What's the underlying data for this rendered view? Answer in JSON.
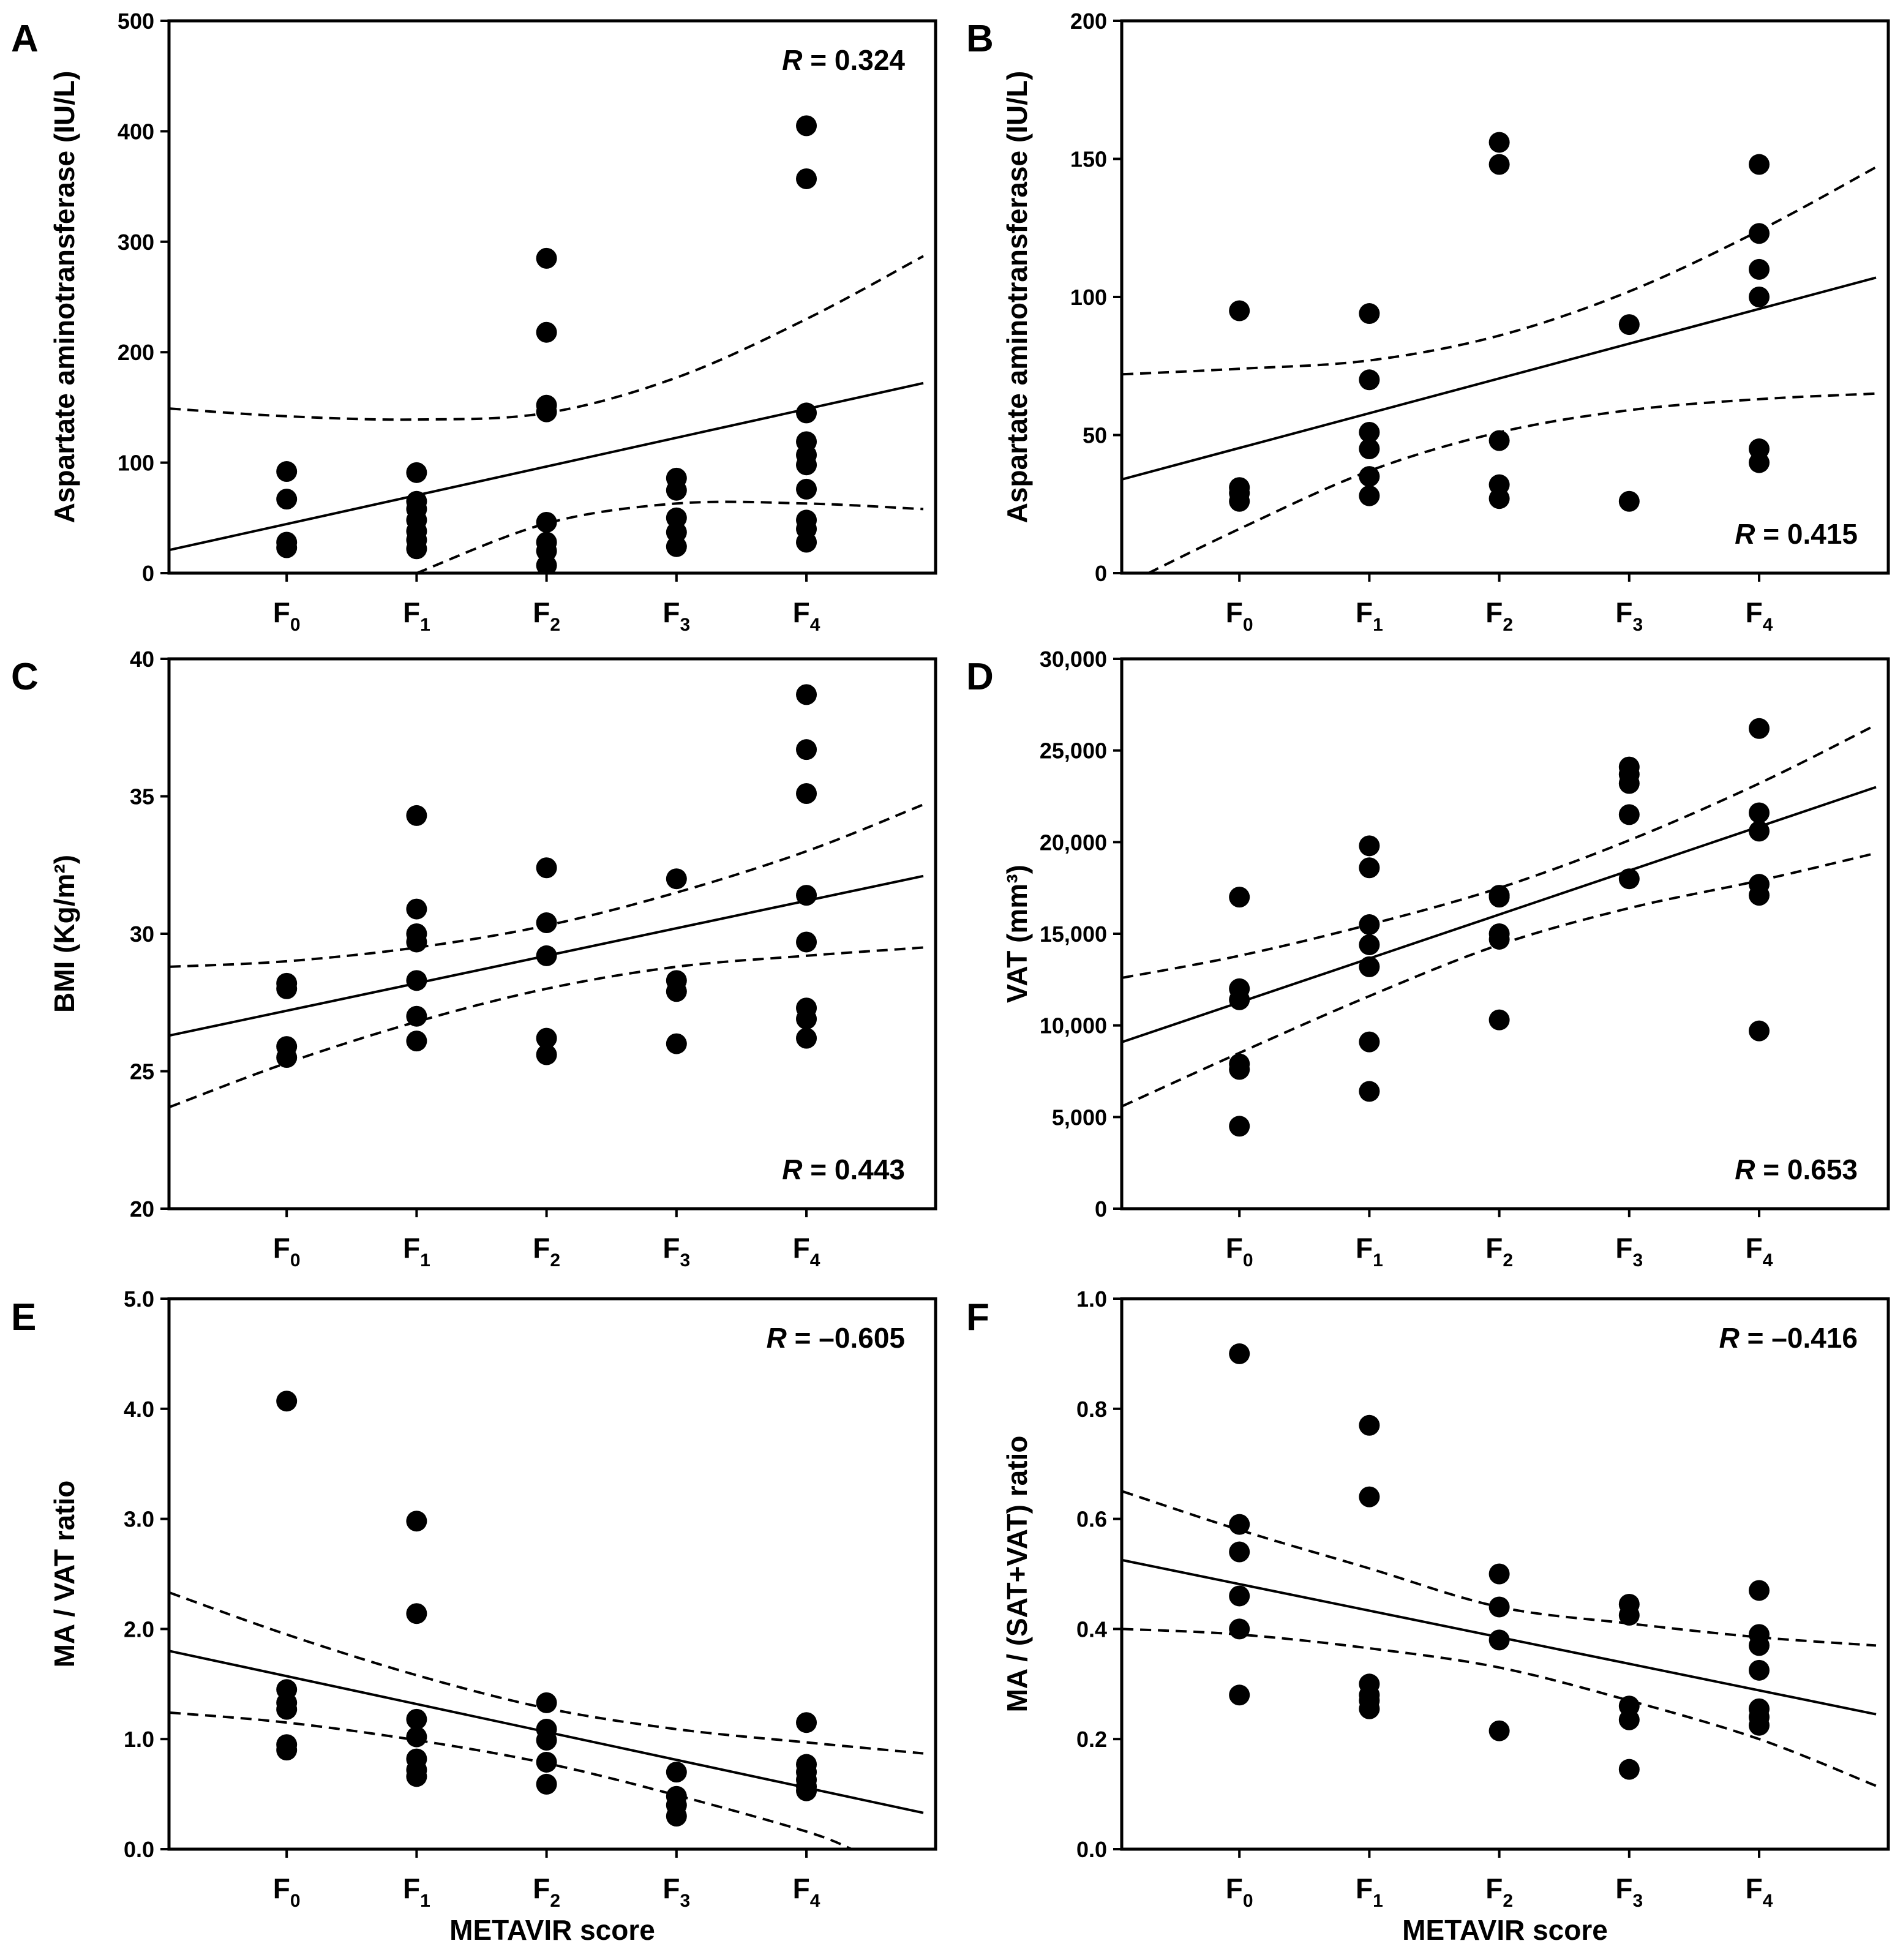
{
  "figure": {
    "x_axis_title": "METAVIR score",
    "categories": [
      "F0",
      "F1",
      "F2",
      "F3",
      "F4"
    ]
  },
  "chart_data": [
    {
      "panel": "A",
      "type": "scatter",
      "ylabel": "Aspartate aminotransferase (IU/L)",
      "xlabel": "",
      "categories": [
        "F0",
        "F1",
        "F2",
        "F3",
        "F4"
      ],
      "ylim": [
        0,
        500
      ],
      "yticks": [
        0,
        100,
        200,
        300,
        400,
        500
      ],
      "ytick_labels": [
        "0",
        "100",
        "200",
        "300",
        "400",
        "500"
      ],
      "r_label": "R",
      "r_value": "= 0.324",
      "r_position": "top-right",
      "points": [
        {
          "x": 0,
          "y": 92
        },
        {
          "x": 0,
          "y": 67
        },
        {
          "x": 0,
          "y": 28
        },
        {
          "x": 0,
          "y": 23
        },
        {
          "x": 1,
          "y": 91
        },
        {
          "x": 1,
          "y": 65
        },
        {
          "x": 1,
          "y": 58
        },
        {
          "x": 1,
          "y": 48
        },
        {
          "x": 1,
          "y": 38
        },
        {
          "x": 1,
          "y": 30
        },
        {
          "x": 1,
          "y": 22
        },
        {
          "x": 2,
          "y": 285
        },
        {
          "x": 2,
          "y": 218
        },
        {
          "x": 2,
          "y": 152
        },
        {
          "x": 2,
          "y": 146
        },
        {
          "x": 2,
          "y": 46
        },
        {
          "x": 2,
          "y": 28
        },
        {
          "x": 2,
          "y": 20
        },
        {
          "x": 2,
          "y": 7
        },
        {
          "x": 3,
          "y": 86
        },
        {
          "x": 3,
          "y": 75
        },
        {
          "x": 3,
          "y": 50
        },
        {
          "x": 3,
          "y": 37
        },
        {
          "x": 3,
          "y": 24
        },
        {
          "x": 4,
          "y": 405
        },
        {
          "x": 4,
          "y": 357
        },
        {
          "x": 4,
          "y": 145
        },
        {
          "x": 4,
          "y": 119
        },
        {
          "x": 4,
          "y": 107
        },
        {
          "x": 4,
          "y": 98
        },
        {
          "x": 4,
          "y": 76
        },
        {
          "x": 4,
          "y": 48
        },
        {
          "x": 4,
          "y": 40
        },
        {
          "x": 4,
          "y": 28
        }
      ],
      "fit_line": {
        "x": [
          -0.9,
          4.9
        ],
        "y": [
          21,
          172
        ]
      },
      "ci_upper": {
        "x": [
          -0.9,
          0,
          1,
          2,
          3,
          4,
          4.9
        ],
        "y": [
          149,
          142,
          139,
          145,
          177,
          230,
          287
        ]
      },
      "ci_lower": {
        "x": [
          1.0,
          2,
          3,
          4,
          4.9
        ],
        "y": [
          0,
          45,
          63,
          63,
          58
        ]
      }
    },
    {
      "panel": "B",
      "type": "scatter",
      "ylabel": "Aspartate aminotransferase (IU/L)",
      "xlabel": "",
      "categories": [
        "F0",
        "F1",
        "F2",
        "F3",
        "F4"
      ],
      "ylim": [
        0,
        200
      ],
      "yticks": [
        0,
        50,
        100,
        150,
        200
      ],
      "ytick_labels": [
        "0",
        "50",
        "100",
        "150",
        "200"
      ],
      "r_label": "R",
      "r_value": "= 0.415",
      "r_position": "bottom-right",
      "points": [
        {
          "x": 0,
          "y": 95
        },
        {
          "x": 0,
          "y": 31
        },
        {
          "x": 0,
          "y": 29
        },
        {
          "x": 0,
          "y": 26
        },
        {
          "x": 1,
          "y": 94
        },
        {
          "x": 1,
          "y": 70
        },
        {
          "x": 1,
          "y": 51
        },
        {
          "x": 1,
          "y": 45
        },
        {
          "x": 1,
          "y": 35
        },
        {
          "x": 1,
          "y": 28
        },
        {
          "x": 2,
          "y": 156
        },
        {
          "x": 2,
          "y": 148
        },
        {
          "x": 2,
          "y": 48
        },
        {
          "x": 2,
          "y": 32
        },
        {
          "x": 2,
          "y": 27
        },
        {
          "x": 3,
          "y": 90
        },
        {
          "x": 3,
          "y": 26
        },
        {
          "x": 4,
          "y": 148
        },
        {
          "x": 4,
          "y": 123
        },
        {
          "x": 4,
          "y": 110
        },
        {
          "x": 4,
          "y": 100
        },
        {
          "x": 4,
          "y": 45
        },
        {
          "x": 4,
          "y": 40
        }
      ],
      "fit_line": {
        "x": [
          -0.9,
          4.9
        ],
        "y": [
          34,
          107
        ]
      },
      "ci_upper": {
        "x": [
          -0.9,
          0,
          1,
          2,
          3,
          4,
          4.9
        ],
        "y": [
          72,
          74,
          77,
          86,
          102,
          124,
          147
        ]
      },
      "ci_lower": {
        "x": [
          -0.7,
          0,
          1,
          2,
          3,
          4,
          4.9
        ],
        "y": [
          0,
          16,
          37,
          51,
          59,
          63,
          65
        ]
      }
    },
    {
      "panel": "C",
      "type": "scatter",
      "ylabel": "BMI (Kg/m²)",
      "xlabel": "",
      "categories": [
        "F0",
        "F1",
        "F2",
        "F3",
        "F4"
      ],
      "ylim": [
        20,
        40
      ],
      "yticks": [
        20,
        25,
        30,
        35,
        40
      ],
      "ytick_labels": [
        "20",
        "25",
        "30",
        "35",
        "40"
      ],
      "r_label": "R",
      "r_value": "= 0.443",
      "r_position": "bottom-right",
      "points": [
        {
          "x": 0,
          "y": 28.2
        },
        {
          "x": 0,
          "y": 28.0
        },
        {
          "x": 0,
          "y": 25.9
        },
        {
          "x": 0,
          "y": 25.5
        },
        {
          "x": 1,
          "y": 34.3
        },
        {
          "x": 1,
          "y": 30.9
        },
        {
          "x": 1,
          "y": 30.0
        },
        {
          "x": 1,
          "y": 29.7
        },
        {
          "x": 1,
          "y": 28.3
        },
        {
          "x": 1,
          "y": 27.0
        },
        {
          "x": 1,
          "y": 26.1
        },
        {
          "x": 2,
          "y": 32.4
        },
        {
          "x": 2,
          "y": 30.4
        },
        {
          "x": 2,
          "y": 29.2
        },
        {
          "x": 2,
          "y": 26.2
        },
        {
          "x": 2,
          "y": 25.6
        },
        {
          "x": 3,
          "y": 32.0
        },
        {
          "x": 3,
          "y": 28.3
        },
        {
          "x": 3,
          "y": 27.9
        },
        {
          "x": 3,
          "y": 26.0
        },
        {
          "x": 4,
          "y": 38.7
        },
        {
          "x": 4,
          "y": 36.7
        },
        {
          "x": 4,
          "y": 35.1
        },
        {
          "x": 4,
          "y": 31.4
        },
        {
          "x": 4,
          "y": 29.7
        },
        {
          "x": 4,
          "y": 27.3
        },
        {
          "x": 4,
          "y": 26.9
        },
        {
          "x": 4,
          "y": 26.2
        }
      ],
      "fit_line": {
        "x": [
          -0.9,
          4.9
        ],
        "y": [
          26.3,
          32.1
        ]
      },
      "ci_upper": {
        "x": [
          -0.9,
          0,
          1,
          2,
          3,
          4,
          4.9
        ],
        "y": [
          28.8,
          29.0,
          29.5,
          30.3,
          31.5,
          33.0,
          34.7
        ]
      },
      "ci_lower": {
        "x": [
          -0.9,
          0,
          1,
          2,
          3,
          4,
          4.9
        ],
        "y": [
          23.7,
          25.3,
          26.8,
          28.0,
          28.8,
          29.2,
          29.5
        ]
      }
    },
    {
      "panel": "D",
      "type": "scatter",
      "ylabel": "VAT (mm³)",
      "xlabel": "",
      "categories": [
        "F0",
        "F1",
        "F2",
        "F3",
        "F4"
      ],
      "ylim": [
        0,
        30000
      ],
      "yticks": [
        0,
        5000,
        10000,
        15000,
        20000,
        25000,
        30000
      ],
      "ytick_labels": [
        "0",
        "5,000",
        "10,000",
        "15,000",
        "20,000",
        "25,000",
        "30,000"
      ],
      "r_label": "R",
      "r_value": "= 0.653",
      "r_position": "bottom-right",
      "points": [
        {
          "x": 0,
          "y": 17000
        },
        {
          "x": 0,
          "y": 12000
        },
        {
          "x": 0,
          "y": 11400
        },
        {
          "x": 0,
          "y": 7900
        },
        {
          "x": 0,
          "y": 7600
        },
        {
          "x": 0,
          "y": 4500
        },
        {
          "x": 1,
          "y": 19800
        },
        {
          "x": 1,
          "y": 18600
        },
        {
          "x": 1,
          "y": 15500
        },
        {
          "x": 1,
          "y": 14400
        },
        {
          "x": 1,
          "y": 13200
        },
        {
          "x": 1,
          "y": 9100
        },
        {
          "x": 1,
          "y": 6400
        },
        {
          "x": 2,
          "y": 17100
        },
        {
          "x": 2,
          "y": 17000
        },
        {
          "x": 2,
          "y": 15000
        },
        {
          "x": 2,
          "y": 14700
        },
        {
          "x": 2,
          "y": 10300
        },
        {
          "x": 3,
          "y": 24100
        },
        {
          "x": 3,
          "y": 23700
        },
        {
          "x": 3,
          "y": 23200
        },
        {
          "x": 3,
          "y": 21500
        },
        {
          "x": 3,
          "y": 18000
        },
        {
          "x": 4,
          "y": 26200
        },
        {
          "x": 4,
          "y": 21600
        },
        {
          "x": 4,
          "y": 20600
        },
        {
          "x": 4,
          "y": 17700
        },
        {
          "x": 4,
          "y": 17100
        },
        {
          "x": 4,
          "y": 9700
        }
      ],
      "fit_line": {
        "x": [
          -0.9,
          4.9
        ],
        "y": [
          9100,
          23000
        ]
      },
      "ci_upper": {
        "x": [
          -0.9,
          0,
          1,
          2,
          3,
          4,
          4.9
        ],
        "y": [
          12600,
          13800,
          15500,
          17500,
          20100,
          23200,
          26400
        ]
      },
      "ci_lower": {
        "x": [
          -0.9,
          0,
          1,
          2,
          3,
          4,
          4.9
        ],
        "y": [
          5600,
          8500,
          11600,
          14400,
          16400,
          17900,
          19400
        ]
      }
    },
    {
      "panel": "E",
      "type": "scatter",
      "ylabel": "MA / VAT ratio",
      "xlabel": "METAVIR score",
      "categories": [
        "F0",
        "F1",
        "F2",
        "F3",
        "F4"
      ],
      "ylim": [
        0,
        5
      ],
      "yticks": [
        0,
        1,
        2,
        3,
        4,
        5
      ],
      "ytick_labels": [
        "0.0",
        "1.0",
        "2.0",
        "3.0",
        "4.0",
        "5.0"
      ],
      "r_label": "R",
      "r_value": "= –0.605",
      "r_position": "top-right",
      "points": [
        {
          "x": 0,
          "y": 4.07
        },
        {
          "x": 0,
          "y": 1.45
        },
        {
          "x": 0,
          "y": 1.33
        },
        {
          "x": 0,
          "y": 1.27
        },
        {
          "x": 0,
          "y": 0.95
        },
        {
          "x": 0,
          "y": 0.9
        },
        {
          "x": 1,
          "y": 2.98
        },
        {
          "x": 1,
          "y": 2.14
        },
        {
          "x": 1,
          "y": 1.18
        },
        {
          "x": 1,
          "y": 1.02
        },
        {
          "x": 1,
          "y": 0.82
        },
        {
          "x": 1,
          "y": 0.72
        },
        {
          "x": 1,
          "y": 0.66
        },
        {
          "x": 2,
          "y": 1.33
        },
        {
          "x": 2,
          "y": 1.09
        },
        {
          "x": 2,
          "y": 0.99
        },
        {
          "x": 2,
          "y": 0.79
        },
        {
          "x": 2,
          "y": 0.59
        },
        {
          "x": 3,
          "y": 0.7
        },
        {
          "x": 3,
          "y": 0.48
        },
        {
          "x": 3,
          "y": 0.4
        },
        {
          "x": 3,
          "y": 0.3
        },
        {
          "x": 4,
          "y": 1.15
        },
        {
          "x": 4,
          "y": 0.77
        },
        {
          "x": 4,
          "y": 0.7
        },
        {
          "x": 4,
          "y": 0.63
        },
        {
          "x": 4,
          "y": 0.57
        },
        {
          "x": 4,
          "y": 0.53
        }
      ],
      "fit_line": {
        "x": [
          -0.9,
          4.9
        ],
        "y": [
          1.8,
          0.33
        ]
      },
      "ci_upper": {
        "x": [
          -0.9,
          0,
          1,
          2,
          3,
          4,
          4.9
        ],
        "y": [
          2.33,
          1.95,
          1.58,
          1.28,
          1.09,
          0.97,
          0.87
        ]
      },
      "ci_lower": {
        "x": [
          -0.9,
          0,
          1,
          2,
          3,
          4,
          4.35
        ],
        "y": [
          1.24,
          1.15,
          0.99,
          0.78,
          0.49,
          0.16,
          0.0
        ]
      }
    },
    {
      "panel": "F",
      "type": "scatter",
      "ylabel": "MA / (SAT+VAT) ratio",
      "xlabel": "METAVIR score",
      "categories": [
        "F0",
        "F1",
        "F2",
        "F3",
        "F4"
      ],
      "ylim": [
        0,
        1
      ],
      "yticks": [
        0,
        0.2,
        0.4,
        0.6,
        0.8,
        1.0
      ],
      "ytick_labels": [
        "0.0",
        "0.2",
        "0.4",
        "0.6",
        "0.8",
        "1.0"
      ],
      "r_label": "R",
      "r_value": "= –0.416",
      "r_position": "top-right",
      "points": [
        {
          "x": 0,
          "y": 0.9
        },
        {
          "x": 0,
          "y": 0.59
        },
        {
          "x": 0,
          "y": 0.54
        },
        {
          "x": 0,
          "y": 0.46
        },
        {
          "x": 0,
          "y": 0.4
        },
        {
          "x": 0,
          "y": 0.28
        },
        {
          "x": 1,
          "y": 0.77
        },
        {
          "x": 1,
          "y": 0.64
        },
        {
          "x": 1,
          "y": 0.3
        },
        {
          "x": 1,
          "y": 0.28
        },
        {
          "x": 1,
          "y": 0.27
        },
        {
          "x": 1,
          "y": 0.255
        },
        {
          "x": 2,
          "y": 0.5
        },
        {
          "x": 2,
          "y": 0.44
        },
        {
          "x": 2,
          "y": 0.38
        },
        {
          "x": 2,
          "y": 0.215
        },
        {
          "x": 3,
          "y": 0.445
        },
        {
          "x": 3,
          "y": 0.425
        },
        {
          "x": 3,
          "y": 0.26
        },
        {
          "x": 3,
          "y": 0.235
        },
        {
          "x": 3,
          "y": 0.145
        },
        {
          "x": 4,
          "y": 0.47
        },
        {
          "x": 4,
          "y": 0.39
        },
        {
          "x": 4,
          "y": 0.37
        },
        {
          "x": 4,
          "y": 0.325
        },
        {
          "x": 4,
          "y": 0.255
        },
        {
          "x": 4,
          "y": 0.24
        },
        {
          "x": 4,
          "y": 0.225
        }
      ],
      "fit_line": {
        "x": [
          -0.9,
          4.9
        ],
        "y": [
          0.525,
          0.245
        ]
      },
      "ci_upper": {
        "x": [
          -0.9,
          0,
          1,
          2,
          3,
          4,
          4.9
        ],
        "y": [
          0.65,
          0.58,
          0.51,
          0.44,
          0.41,
          0.385,
          0.37
        ]
      },
      "ci_lower": {
        "x": [
          -0.9,
          0,
          1,
          2,
          3,
          4,
          4.9
        ],
        "y": [
          0.4,
          0.39,
          0.365,
          0.33,
          0.27,
          0.2,
          0.115
        ]
      }
    }
  ]
}
